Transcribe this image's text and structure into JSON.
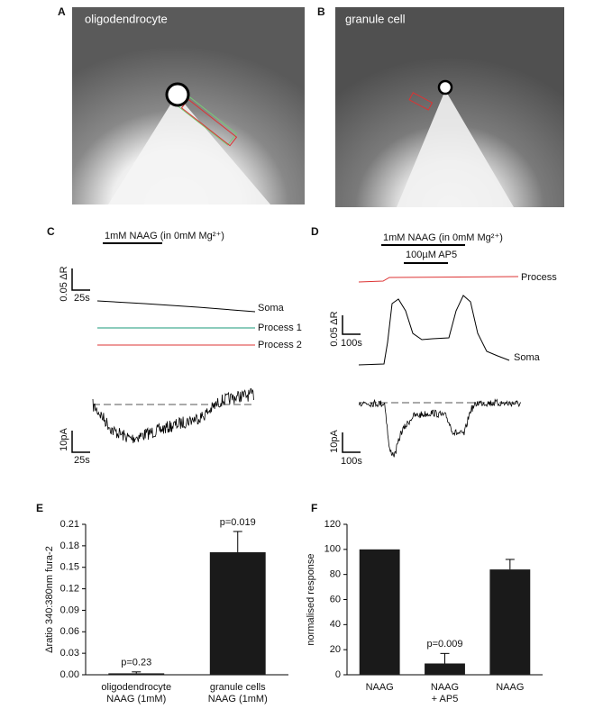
{
  "figure": {
    "panel_labels": [
      "A",
      "B",
      "C",
      "D",
      "E",
      "F"
    ],
    "image_a": "oligodendrocyte",
    "image_b": "granule cell",
    "trace_c": {
      "stimulus": "1mM NAAG (in 0mM Mg²⁺)",
      "scale_y": "0.05 ΔR",
      "scale_x": "25s",
      "labels": [
        "Soma",
        "Process 1",
        "Process 2"
      ],
      "current_scale_y": "10pA",
      "current_scale_x": "25s"
    },
    "trace_d": {
      "stimulus": "1mM NAAG (in 0mM Mg²⁺)",
      "blocker": "100µM AP5",
      "scale_y": "0.05 ΔR",
      "scale_x": "100s",
      "labels": [
        "Process",
        "Soma"
      ],
      "current_scale_y": "10pA",
      "current_scale_x": "100s"
    }
  },
  "chart_data": [
    {
      "type": "bar",
      "y_label": "Δratio 340:380nm fura-2",
      "categories": [
        [
          "oligodendrocyte",
          "NAAG (1mM)"
        ],
        [
          "granule cells",
          "NAAG (1mM)"
        ]
      ],
      "values": [
        0.002,
        0.171
      ],
      "errors": [
        0.002,
        0.029
      ],
      "annotations": [
        "p=0.23",
        "p=0.019"
      ],
      "color": "#1a1a1a",
      "ylim": [
        0,
        0.21
      ],
      "yticks": [
        {
          "value": 0,
          "label": "0.00"
        },
        {
          "value": 0.03,
          "label": "0.03"
        },
        {
          "value": 0.06,
          "label": "0.06"
        },
        {
          "value": 0.09,
          "label": "0.09"
        },
        {
          "value": 0.12,
          "label": "0.12"
        },
        {
          "value": 0.15,
          "label": "0.15"
        },
        {
          "value": 0.18,
          "label": "0.18"
        },
        {
          "value": 0.21,
          "label": "0.21"
        }
      ]
    },
    {
      "type": "bar",
      "y_label": "normalised response",
      "categories": [
        [
          "NAAG"
        ],
        [
          "NAAG",
          "+ AP5"
        ],
        [
          "NAAG"
        ]
      ],
      "values": [
        100,
        9,
        84
      ],
      "errors": [
        null,
        8,
        8
      ],
      "annotations": [
        null,
        "p=0.009",
        null
      ],
      "color": "#1a1a1a",
      "ylim": [
        0,
        120
      ],
      "yticks": [
        0,
        20,
        40,
        60,
        80,
        100,
        120
      ]
    }
  ]
}
